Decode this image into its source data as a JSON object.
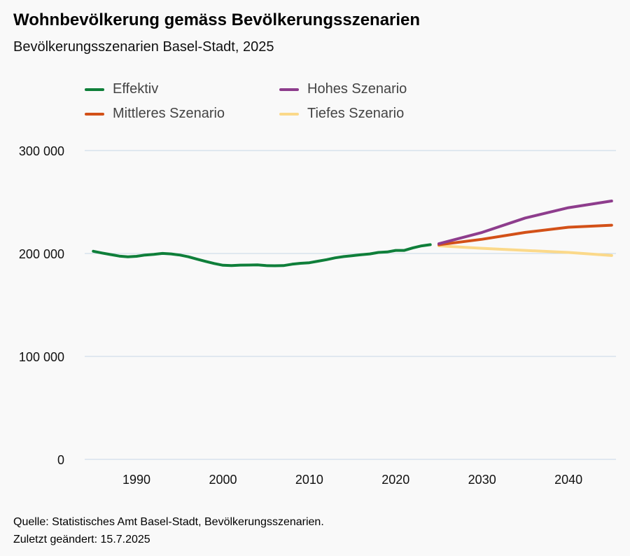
{
  "title": "Wohnbevölkerung gemäss Bevölkerungsszenarien",
  "subtitle": "Bevölkerungsszenarien Basel-Stadt, 2025",
  "source_line1": "Quelle: Statistisches Amt Basel-Stadt, Bevölkerungsszenarien.",
  "source_line2": "Zuletzt geändert: 15.7.2025",
  "chart_data": {
    "type": "line",
    "title": "Wohnbevölkerung gemäss Bevölkerungsszenarien",
    "subtitle": "Bevölkerungsszenarien Basel-Stadt, 2025",
    "xlabel": "",
    "ylabel": "",
    "xlim": [
      1984,
      2045.5
    ],
    "ylim": [
      0,
      300000
    ],
    "x_ticks": [
      1990,
      2000,
      2010,
      2020,
      2030,
      2040
    ],
    "x_tick_labels": [
      "1990",
      "2000",
      "2010",
      "2020",
      "2030",
      "2040"
    ],
    "y_ticks": [
      0,
      100000,
      200000,
      300000
    ],
    "y_tick_labels": [
      "0",
      "100 000",
      "200 000",
      "300 000"
    ],
    "grid": true,
    "legend_position": "top",
    "series": [
      {
        "name": "Effektiv",
        "color": "#0f7f3a",
        "x": [
          1985,
          1986,
          1987,
          1988,
          1989,
          1990,
          1991,
          1992,
          1993,
          1994,
          1995,
          1996,
          1997,
          1998,
          1999,
          2000,
          2001,
          2002,
          2003,
          2004,
          2005,
          2006,
          2007,
          2008,
          2009,
          2010,
          2011,
          2012,
          2013,
          2014,
          2015,
          2016,
          2017,
          2018,
          2019,
          2020,
          2021,
          2022,
          2023,
          2024
        ],
        "values": [
          202200,
          200500,
          199000,
          197500,
          196800,
          197300,
          198500,
          199200,
          200100,
          199600,
          198500,
          196800,
          194500,
          192300,
          190300,
          188600,
          188200,
          188700,
          188800,
          189000,
          188200,
          188100,
          188200,
          189600,
          190500,
          191000,
          192500,
          194000,
          195800,
          197000,
          197900,
          198800,
          199600,
          201000,
          201500,
          203000,
          203000,
          205500,
          207400,
          208600
        ]
      },
      {
        "name": "Mittleres Szenario",
        "color": "#d35118",
        "x": [
          2025,
          2030,
          2035,
          2040,
          2045
        ],
        "values": [
          208500,
          213800,
          220500,
          225500,
          227500
        ]
      },
      {
        "name": "Hohes Szenario",
        "color": "#8e3d8d",
        "x": [
          2025,
          2030,
          2035,
          2040,
          2045
        ],
        "values": [
          209500,
          220500,
          234500,
          244500,
          251000
        ]
      },
      {
        "name": "Tiefes Szenario",
        "color": "#fbd98a",
        "x": [
          2025,
          2030,
          2035,
          2040,
          2045
        ],
        "values": [
          207500,
          205000,
          203000,
          201000,
          198000
        ]
      }
    ]
  }
}
